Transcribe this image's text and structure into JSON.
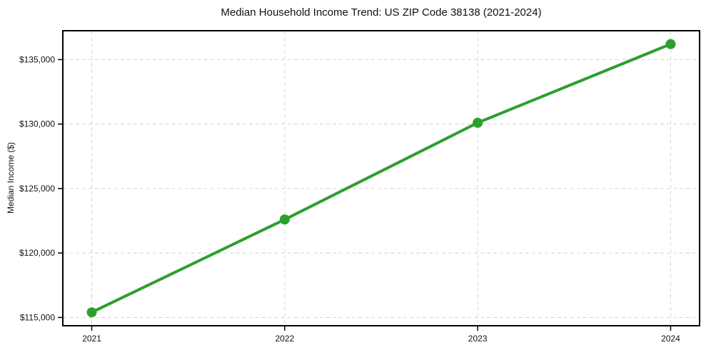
{
  "chart_data": {
    "type": "line",
    "title": "Median Household Income Trend: US ZIP Code 38138 (2021-2024)",
    "xlabel": "",
    "ylabel": "Median Income ($)",
    "categories": [
      2021,
      2022,
      2023,
      2024
    ],
    "series": [
      {
        "name": "Median Household Income",
        "values": [
          115400,
          122600,
          130100,
          136200
        ],
        "color": "#2ca02c",
        "marker": "circle"
      }
    ],
    "xtick_labels": [
      "2021",
      "2022",
      "2023",
      "2024"
    ],
    "ytick_values": [
      115000,
      120000,
      125000,
      130000,
      135000
    ],
    "ytick_labels": [
      "$115,000",
      "$120,000",
      "$125,000",
      "$130,000",
      "$135,000"
    ],
    "xlim": [
      2020.85,
      2024.15
    ],
    "ylim": [
      114360,
      137240
    ],
    "grid": "dashed",
    "grid_color": "#d4d4d4",
    "axis_color": "#000000",
    "text_color": "#111111",
    "legend_position": "none",
    "background": "#ffffff"
  }
}
